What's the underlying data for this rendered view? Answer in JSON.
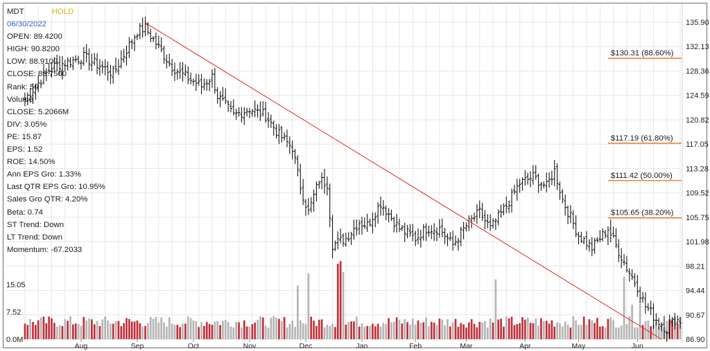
{
  "info": {
    "ticker": "MDT",
    "rating": "HOLD",
    "date": "06/30/2022",
    "lines": [
      "OPEN: 89.4200",
      "HIGH: 90.8200",
      "LOW: 88.9100",
      "CLOSE: 89.7500",
      "Rank: 50",
      "Volume",
      "CLOSE: 5.2066M",
      "DIV: 3.05%",
      "PE: 15.87",
      "EPS: 1.52",
      "ROE: 14.50%",
      "Ann EPS Gro: 1.33%",
      "Last QTR EPS Gro: 10.95%",
      "Sales Gro QTR: 4.20%",
      "Beta: 0.74",
      "ST Trend: Down",
      "LT Trend: Down",
      "Momentum: -67.2033"
    ]
  },
  "colors": {
    "up_volume": "#c0303a",
    "down_volume": "#b4b4b4",
    "trendline": "#e32222",
    "fib_line": "#f07828",
    "grid": "#e6e6e6",
    "rating": "#d8b800",
    "date": "#3a5fcd"
  },
  "chart_data": {
    "type": "ohlc",
    "price_axis": {
      "ticks": [
        "135.90",
        "132.13",
        "128.36",
        "124.59",
        "120.82",
        "117.05",
        "113.28",
        "109.52",
        "105.75",
        "101.98",
        "98.21",
        "94.44",
        "90.67",
        "86.90"
      ],
      "min": 86.9,
      "max": 135.9
    },
    "volume_axis": {
      "ticks": [
        "15.05",
        "7.52",
        "0.0M"
      ],
      "max": 22.5
    },
    "months": [
      "Aug",
      "Sep",
      "Oct",
      "Nov",
      "Dec",
      "Jan",
      "Feb",
      "Mar",
      "Apr",
      "May",
      "Jun"
    ],
    "month_positions": [
      21,
      42,
      63,
      84,
      105,
      126,
      146,
      165,
      187,
      207,
      229
    ],
    "num_bars": 246,
    "price_anchors": [
      [
        0,
        124
      ],
      [
        10,
        129
      ],
      [
        22,
        130.5
      ],
      [
        33,
        128
      ],
      [
        42,
        134.5
      ],
      [
        45,
        135
      ],
      [
        50,
        132
      ],
      [
        55,
        129
      ],
      [
        60,
        127.5
      ],
      [
        66,
        126
      ],
      [
        70,
        127.5
      ],
      [
        72,
        124.5
      ],
      [
        78,
        121.5
      ],
      [
        84,
        122.5
      ],
      [
        90,
        121.5
      ],
      [
        95,
        118.5
      ],
      [
        100,
        116.5
      ],
      [
        103,
        110.5
      ],
      [
        106,
        106.5
      ],
      [
        110,
        111.5
      ],
      [
        113,
        111
      ],
      [
        115,
        101.5
      ],
      [
        120,
        102.5
      ],
      [
        125,
        105
      ],
      [
        128,
        104.5
      ],
      [
        133,
        108
      ],
      [
        140,
        104
      ],
      [
        146,
        102.5
      ],
      [
        150,
        104
      ],
      [
        155,
        104
      ],
      [
        160,
        101.5
      ],
      [
        165,
        104.5
      ],
      [
        170,
        106.5
      ],
      [
        174,
        104
      ],
      [
        180,
        107.5
      ],
      [
        185,
        111
      ],
      [
        190,
        112
      ],
      [
        195,
        110.5
      ],
      [
        198,
        113
      ],
      [
        201,
        108.5
      ],
      [
        207,
        103
      ],
      [
        212,
        101
      ],
      [
        218,
        104
      ],
      [
        222,
        100.5
      ],
      [
        225,
        98
      ],
      [
        229,
        95
      ],
      [
        232,
        92
      ],
      [
        236,
        90
      ],
      [
        240,
        88.5
      ],
      [
        243,
        90
      ],
      [
        245,
        89.75
      ]
    ],
    "trendline": {
      "from": [
        45,
        135.8
      ],
      "to": [
        238,
        86.9
      ]
    },
    "fib_levels": [
      {
        "label": "$130.31 (88.60%)",
        "value": 130.31,
        "start_bar": 218
      },
      {
        "label": "$117.19 (61.80%)",
        "value": 117.19,
        "start_bar": 218
      },
      {
        "label": "$111.42 (50.00%)",
        "value": 111.42,
        "start_bar": 218
      },
      {
        "label": "$105.65 (38.20%)",
        "value": 105.65,
        "start_bar": 218
      }
    ],
    "volume_spikes": [
      [
        117,
        20.8
      ],
      [
        118,
        21.5
      ],
      [
        119,
        18.5
      ],
      [
        106,
        18.2
      ],
      [
        102,
        14.8
      ],
      [
        176,
        16.5
      ],
      [
        224,
        17.2
      ],
      [
        227,
        9.5
      ],
      [
        230,
        10.5
      ]
    ],
    "grid": true
  }
}
